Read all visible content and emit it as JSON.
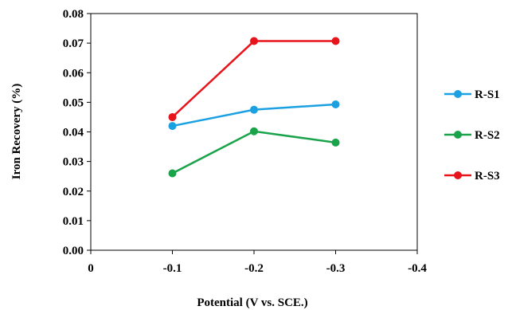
{
  "chart_data": {
    "type": "line",
    "title": "",
    "xlabel": "Potential (V vs. SCE.)",
    "ylabel": "Iron Recovery (%)",
    "x_ticks": [
      0,
      -0.1,
      -0.2,
      -0.3,
      -0.4
    ],
    "x_tick_labels": [
      "0",
      "-0.1",
      "-0.2",
      "-0.3",
      "-0.4"
    ],
    "y_ticks": [
      0,
      0.01,
      0.02,
      0.03,
      0.04,
      0.05,
      0.06,
      0.07,
      0.08
    ],
    "y_tick_labels": [
      "0.00",
      "0.01",
      "0.02",
      "0.03",
      "0.04",
      "0.05",
      "0.06",
      "0.07",
      "0.08"
    ],
    "xlim": [
      0,
      -0.4
    ],
    "ylim": [
      0,
      0.08
    ],
    "grid": false,
    "legend_position": "right",
    "x": [
      -0.1,
      -0.2,
      -0.3
    ],
    "series": [
      {
        "name": "R-S1",
        "color": "#1ba1e2",
        "values": [
          0.042,
          0.0475,
          0.0493
        ]
      },
      {
        "name": "R-S2",
        "color": "#1aa34a",
        "values": [
          0.026,
          0.0402,
          0.0364
        ]
      },
      {
        "name": "R-S3",
        "color": "#e8141b",
        "values": [
          0.045,
          0.0707,
          0.0707
        ]
      }
    ]
  }
}
